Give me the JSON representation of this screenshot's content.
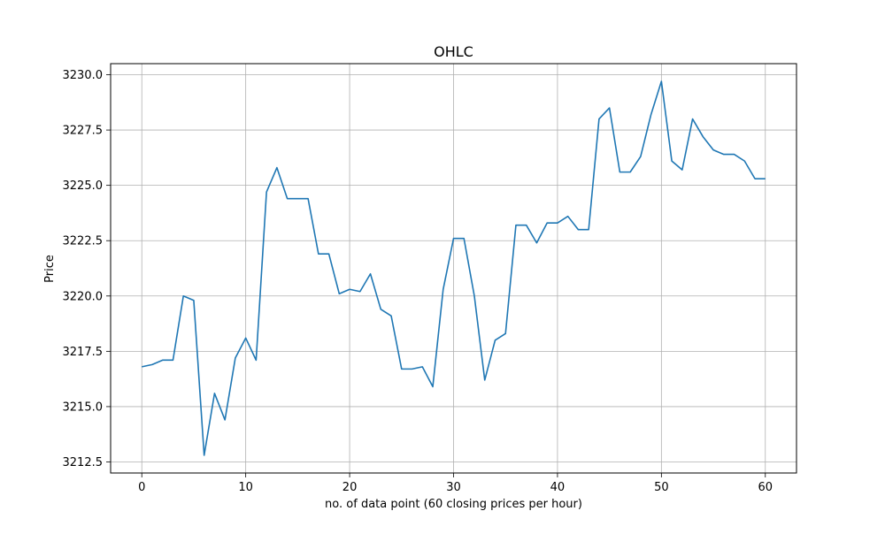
{
  "chart_data": {
    "type": "line",
    "title": "OHLC",
    "xlabel": "no. of data point (60 closing prices per hour)",
    "ylabel": "Price",
    "xlim": [
      -3,
      63
    ],
    "ylim": [
      3212.0,
      3230.5
    ],
    "xticks": [
      0,
      10,
      20,
      30,
      40,
      50,
      60
    ],
    "yticks": [
      3212.5,
      3215.0,
      3217.5,
      3220.0,
      3222.5,
      3225.0,
      3227.5,
      3230.0
    ],
    "xtick_labels": [
      "0",
      "10",
      "20",
      "30",
      "40",
      "50",
      "60"
    ],
    "ytick_labels": [
      "3212.5",
      "3215.0",
      "3217.5",
      "3220.0",
      "3222.5",
      "3225.0",
      "3227.5",
      "3230.0"
    ],
    "grid": true,
    "series": [
      {
        "color": "#1f77b4",
        "x": [
          0,
          1,
          2,
          3,
          4,
          5,
          6,
          7,
          8,
          9,
          10,
          11,
          12,
          13,
          14,
          15,
          16,
          17,
          18,
          19,
          20,
          21,
          22,
          23,
          24,
          25,
          26,
          27,
          28,
          29,
          30,
          31,
          32,
          33,
          34,
          35,
          36,
          37,
          38,
          39,
          40,
          41,
          42,
          43,
          44,
          45,
          46,
          47,
          48,
          49,
          50,
          51,
          52,
          53,
          54,
          55,
          56,
          57,
          58,
          59,
          60
        ],
        "values": [
          3216.8,
          3216.9,
          3217.1,
          3217.1,
          3220.0,
          3219.8,
          3212.8,
          3215.6,
          3214.4,
          3217.2,
          3218.1,
          3217.1,
          3224.7,
          3225.8,
          3224.4,
          3224.4,
          3224.4,
          3221.9,
          3221.9,
          3220.1,
          3220.3,
          3220.2,
          3221.0,
          3219.4,
          3219.1,
          3216.7,
          3216.7,
          3216.8,
          3215.9,
          3220.3,
          3222.6,
          3222.6,
          3220.0,
          3216.2,
          3218.0,
          3218.3,
          3223.2,
          3223.2,
          3222.4,
          3223.3,
          3223.3,
          3223.6,
          3223.0,
          3223.0,
          3228.0,
          3228.5,
          3225.6,
          3225.6,
          3226.3,
          3228.2,
          3229.7,
          3226.1,
          3225.7,
          3228.0,
          3227.2,
          3226.6,
          3226.4,
          3226.4,
          3226.1,
          3225.3,
          3225.3
        ]
      }
    ]
  }
}
